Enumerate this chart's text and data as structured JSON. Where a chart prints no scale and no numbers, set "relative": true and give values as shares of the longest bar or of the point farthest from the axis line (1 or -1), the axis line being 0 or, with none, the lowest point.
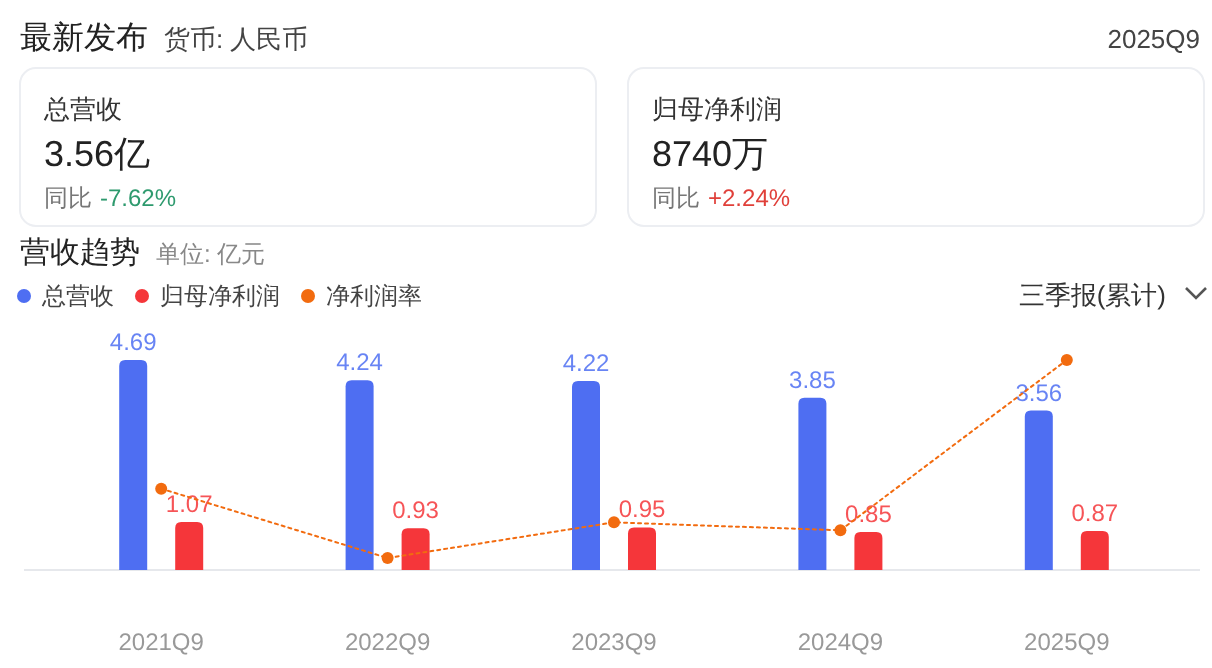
{
  "chart_data": [
    {
      "type": "other",
      "title": "最新发布",
      "subtitle": "货币: 人民币",
      "annotations": [
        "2025Q9",
        "总营收",
        "3.56亿",
        "同比",
        "-7.62%",
        "归母净利润",
        "8740万",
        "同比",
        "+2.24%"
      ]
    },
    {
      "type": "bar",
      "title": "营收趋势",
      "subtitle": "单位: 亿元",
      "categories": [
        "2021Q9",
        "2022Q9",
        "2023Q9",
        "2024Q9",
        "2025Q9"
      ],
      "series": [
        {
          "name": "总营收",
          "color": "#4e6ef2",
          "values": [
            4.69,
            4.24,
            4.22,
            3.85,
            3.56
          ],
          "value_labels": [
            "4.69",
            "4.24",
            "4.22",
            "3.85",
            "3.56"
          ]
        },
        {
          "name": "归母净利润",
          "color": "#f5363a",
          "values": [
            1.07,
            0.93,
            0.95,
            0.85,
            0.87
          ],
          "value_labels": [
            "1.07",
            "0.93",
            "0.95",
            "0.85",
            "0.87"
          ]
        }
      ],
      "legend": "top left",
      "annotations": [
        "三季报(累计)"
      ]
    },
    {
      "type": "line",
      "relative": true,
      "categories": [
        null,
        null,
        null,
        null,
        null
      ],
      "line_style": "dotted",
      "marker": "circle",
      "legend": "top left",
      "series": [
        {
          "name": "净利润率",
          "color": "#f26b0f",
          "values": [
            0.35,
            0,
            0.18,
            0.14,
            1
          ]
        }
      ]
    }
  ]
}
